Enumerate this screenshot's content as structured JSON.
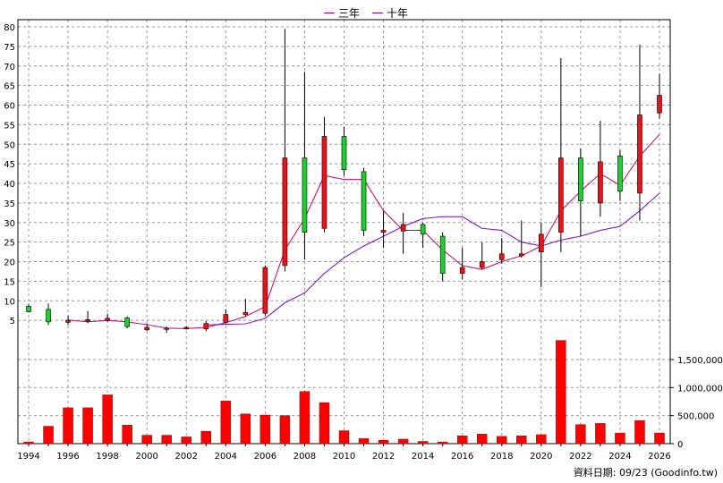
{
  "chart_data": [
    {
      "type": "candlestick",
      "panel": "price",
      "ylim": [
        0,
        80
      ],
      "yticks": [
        5,
        10,
        15,
        20,
        25,
        30,
        35,
        40,
        45,
        50,
        55,
        60,
        65,
        70,
        75,
        80
      ],
      "grid": true,
      "legend_position": "top-center",
      "up_color": "#e8141b",
      "down_color": "#22cc33",
      "candles": [
        {
          "year": 1994,
          "open": 7.2,
          "close": 8.6,
          "high": 9.2,
          "low": 7.0,
          "dir": "down"
        },
        {
          "year": 1995,
          "open": 4.6,
          "close": 7.8,
          "high": 9.3,
          "low": 3.8,
          "dir": "down"
        },
        {
          "year": 1996,
          "open": 5.0,
          "close": 4.5,
          "high": 6.2,
          "low": 3.8,
          "dir": "up"
        },
        {
          "year": 1997,
          "open": 4.8,
          "close": 5.2,
          "high": 7.4,
          "low": 4.3,
          "dir": "up"
        },
        {
          "year": 1998,
          "open": 5.0,
          "close": 5.5,
          "high": 6.7,
          "low": 4.6,
          "dir": "up"
        },
        {
          "year": 1999,
          "open": 3.4,
          "close": 5.6,
          "high": 6.0,
          "low": 3.0,
          "dir": "down"
        },
        {
          "year": 2000,
          "open": 2.6,
          "close": 3.2,
          "high": 4.2,
          "low": 2.3,
          "dir": "up"
        },
        {
          "year": 2001,
          "open": 2.8,
          "close": 3.0,
          "high": 3.4,
          "low": 1.8,
          "dir": "up"
        },
        {
          "year": 2002,
          "open": 2.9,
          "close": 3.2,
          "high": 3.4,
          "low": 2.6,
          "dir": "up"
        },
        {
          "year": 2003,
          "open": 2.8,
          "close": 4.2,
          "high": 4.8,
          "low": 2.2,
          "dir": "up"
        },
        {
          "year": 2004,
          "open": 4.5,
          "close": 6.5,
          "high": 7.8,
          "low": 4.2,
          "dir": "up"
        },
        {
          "year": 2005,
          "open": 6.5,
          "close": 7.0,
          "high": 10.5,
          "low": 6.0,
          "dir": "up"
        },
        {
          "year": 2006,
          "open": 6.8,
          "close": 18.5,
          "high": 19.0,
          "low": 6.2,
          "dir": "up"
        },
        {
          "year": 2007,
          "open": 19.0,
          "close": 46.5,
          "high": 79.5,
          "low": 17.5,
          "dir": "up"
        },
        {
          "year": 2008,
          "open": 27.5,
          "close": 46.5,
          "high": 68.5,
          "low": 20.5,
          "dir": "down"
        },
        {
          "year": 2009,
          "open": 28.5,
          "close": 52.0,
          "high": 57.0,
          "low": 27.5,
          "dir": "up"
        },
        {
          "year": 2010,
          "open": 43.5,
          "close": 52.0,
          "high": 54.5,
          "low": 42.0,
          "dir": "down"
        },
        {
          "year": 2011,
          "open": 28.0,
          "close": 43.0,
          "high": 44.0,
          "low": 26.5,
          "dir": "down"
        },
        {
          "year": 2012,
          "open": 27.5,
          "close": 28.0,
          "high": 33.0,
          "low": 23.5,
          "dir": "up"
        },
        {
          "year": 2013,
          "open": 27.8,
          "close": 29.5,
          "high": 32.5,
          "low": 22.0,
          "dir": "up"
        },
        {
          "year": 2014,
          "open": 27.0,
          "close": 29.5,
          "high": 30.0,
          "low": 23.5,
          "dir": "down"
        },
        {
          "year": 2015,
          "open": 17.0,
          "close": 26.5,
          "high": 27.5,
          "low": 15.0,
          "dir": "down"
        },
        {
          "year": 2016,
          "open": 17.0,
          "close": 18.5,
          "high": 23.5,
          "low": 15.5,
          "dir": "up"
        },
        {
          "year": 2017,
          "open": 18.5,
          "close": 20.0,
          "high": 25.0,
          "low": 18.0,
          "dir": "up"
        },
        {
          "year": 2018,
          "open": 20.5,
          "close": 22.0,
          "high": 26.0,
          "low": 19.5,
          "dir": "up"
        },
        {
          "year": 2019,
          "open": 21.5,
          "close": 22.0,
          "high": 30.5,
          "low": 21.0,
          "dir": "up"
        },
        {
          "year": 2020,
          "open": 22.5,
          "close": 27.0,
          "high": 30.0,
          "low": 13.5,
          "dir": "up"
        },
        {
          "year": 2021,
          "open": 27.5,
          "close": 46.5,
          "high": 72.0,
          "low": 22.5,
          "dir": "up"
        },
        {
          "year": 2022,
          "open": 35.5,
          "close": 46.5,
          "high": 49.0,
          "low": 26.5,
          "dir": "down"
        },
        {
          "year": 2023,
          "open": 35.0,
          "close": 45.5,
          "high": 56.0,
          "low": 31.5,
          "dir": "up"
        },
        {
          "year": 2024,
          "open": 38.0,
          "close": 47.0,
          "high": 48.5,
          "low": 35.5,
          "dir": "down"
        },
        {
          "year": 2025,
          "open": 37.5,
          "close": 57.5,
          "high": 75.5,
          "low": 30.5,
          "dir": "up"
        },
        {
          "year": 2026,
          "open": 58.0,
          "close": 62.5,
          "high": 68.0,
          "low": 56.5,
          "dir": "up"
        }
      ],
      "series": [
        {
          "name": "三年",
          "color": "#cc0066",
          "x": [
            1996,
            1997,
            1998,
            1999,
            2000,
            2001,
            2002,
            2003,
            2004,
            2005,
            2006,
            2007,
            2008,
            2009,
            2010,
            2011,
            2012,
            2013,
            2014,
            2015,
            2016,
            2017,
            2018,
            2019,
            2020,
            2021,
            2022,
            2023,
            2024,
            2025,
            2026
          ],
          "values": [
            5.1,
            4.6,
            5.0,
            4.6,
            3.9,
            3.0,
            2.9,
            3.2,
            4.4,
            6.0,
            8.5,
            23.0,
            31.0,
            42.0,
            41.0,
            41.0,
            33.0,
            28.0,
            28.0,
            23.0,
            19.0,
            18.0,
            20.0,
            21.5,
            24.0,
            33.0,
            38.0,
            42.5,
            39.5,
            47.0,
            52.5
          ]
        },
        {
          "name": "十年",
          "color": "#7a00cc",
          "x": [
            2003,
            2004,
            2005,
            2006,
            2007,
            2008,
            2009,
            2010,
            2011,
            2012,
            2013,
            2014,
            2015,
            2016,
            2017,
            2018,
            2019,
            2020,
            2021,
            2022,
            2023,
            2024,
            2025,
            2026
          ],
          "values": [
            3.8,
            4.0,
            4.1,
            5.5,
            9.5,
            12.0,
            17.0,
            21.0,
            24.0,
            26.5,
            29.0,
            31.0,
            31.5,
            31.5,
            28.5,
            28.0,
            25.0,
            24.0,
            25.5,
            26.5,
            28.0,
            29.0,
            33.0,
            37.5
          ]
        }
      ]
    },
    {
      "type": "bar",
      "panel": "volume",
      "ylim": [
        0,
        1850000
      ],
      "yticks": [
        0,
        500000,
        1000000,
        1500000
      ],
      "ytick_labels": [
        "0",
        "500,000",
        "1,000,000",
        "1,500,000"
      ],
      "bar_color": "#ff0000",
      "categories": [
        1994,
        1995,
        1996,
        1997,
        1998,
        1999,
        2000,
        2001,
        2002,
        2003,
        2004,
        2005,
        2006,
        2007,
        2008,
        2009,
        2010,
        2011,
        2012,
        2013,
        2014,
        2015,
        2016,
        2017,
        2018,
        2019,
        2020,
        2021,
        2022,
        2023,
        2024,
        2025,
        2026
      ],
      "values": [
        30000,
        310000,
        640000,
        640000,
        870000,
        330000,
        150000,
        150000,
        120000,
        220000,
        760000,
        530000,
        510000,
        500000,
        930000,
        730000,
        230000,
        90000,
        60000,
        80000,
        40000,
        30000,
        140000,
        170000,
        130000,
        140000,
        160000,
        1840000,
        340000,
        360000,
        190000,
        410000,
        190000
      ]
    }
  ],
  "xaxis": {
    "tick_labels": [
      "1994",
      "1996",
      "1998",
      "2000",
      "2002",
      "2004",
      "2006",
      "2008",
      "2010",
      "2012",
      "2014",
      "2016",
      "2018",
      "2020",
      "2022",
      "2024",
      "2026"
    ]
  },
  "legend": {
    "items": [
      {
        "label": "三年",
        "color": "#cc0066"
      },
      {
        "label": "十年",
        "color": "#7a00cc"
      }
    ]
  },
  "footer": {
    "credit": "資料日期: 09/23 (Goodinfo.tw)"
  }
}
